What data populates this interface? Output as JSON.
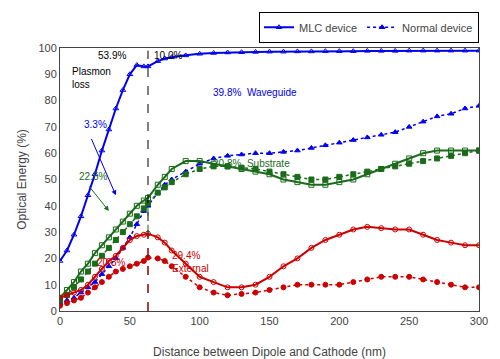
{
  "chart_data": {
    "type": "line",
    "xlabel": "Distance between Dipole and Cathode (nm)",
    "ylabel": "Optical Energy (%)",
    "xlim": [
      0,
      300
    ],
    "ylim": [
      0,
      100
    ],
    "xticks": [
      0,
      50,
      100,
      150,
      200,
      250,
      300
    ],
    "yticks": [
      0,
      10,
      20,
      30,
      40,
      50,
      60,
      70,
      80,
      90,
      100
    ],
    "grid": false,
    "legend": "top",
    "x": [
      0,
      5,
      10,
      15,
      20,
      25,
      30,
      35,
      40,
      45,
      50,
      55,
      60,
      63,
      70,
      75,
      80,
      90,
      100,
      110,
      120,
      130,
      140,
      150,
      160,
      170,
      180,
      190,
      200,
      210,
      220,
      230,
      240,
      250,
      260,
      270,
      280,
      290,
      300
    ],
    "series": [
      {
        "name": "MLC device",
        "color": "#0000EE",
        "line_style": "solid",
        "marker": "triangle-up-open",
        "values": [
          19,
          23,
          29,
          36,
          44,
          52,
          61,
          69,
          77,
          84,
          90,
          93.5,
          93,
          93,
          95,
          96,
          96.5,
          97.2,
          97.8,
          98.1,
          98.3,
          98.4,
          98.5,
          98.6,
          98.6,
          98.7,
          98.7,
          98.8,
          98.8,
          98.8,
          98.9,
          98.9,
          98.9,
          99.0,
          99.0,
          99.0,
          99.0,
          99.0,
          99.0
        ]
      },
      {
        "name": "Normal device",
        "color": "#0000EE",
        "line_style": "dotted",
        "marker": "triangle-up",
        "values": [
          3,
          4,
          5,
          7,
          9,
          11,
          14,
          17,
          20,
          24,
          28,
          33,
          38,
          40,
          45,
          48,
          50,
          53,
          56,
          58,
          59,
          59.5,
          60,
          60,
          60.5,
          61,
          62,
          63,
          64,
          65,
          66,
          67,
          68,
          70,
          72,
          74,
          75,
          77,
          78
        ]
      },
      {
        "name": "MLC device",
        "color": "#1a6b1a",
        "line_style": "solid",
        "marker": "square-open",
        "values": [
          5,
          8,
          11,
          15,
          18,
          22,
          25,
          28,
          31,
          34,
          37,
          40,
          42,
          43,
          48,
          51,
          54,
          57,
          57,
          56,
          55,
          54,
          53,
          52,
          50,
          49,
          48,
          48,
          49,
          50,
          52,
          54,
          56,
          58,
          60,
          61,
          61,
          61,
          61
        ]
      },
      {
        "name": "Normal device",
        "color": "#1a6b1a",
        "line_style": "dotted",
        "marker": "square",
        "values": [
          4,
          6,
          9,
          12,
          15,
          18,
          21,
          24,
          27,
          30,
          33,
          36,
          39,
          41,
          45,
          47,
          49,
          52,
          54,
          55,
          55,
          54.5,
          54,
          53,
          52,
          51,
          50,
          50,
          51,
          52,
          53,
          54,
          55,
          56,
          57,
          58,
          59,
          60,
          61
        ]
      },
      {
        "name": "MLC device",
        "color": "#CC0000",
        "line_style": "solid",
        "marker": "circle-open",
        "values": [
          5,
          6,
          7,
          8,
          10,
          13,
          16,
          19,
          21,
          24,
          27,
          28.5,
          29,
          29.4,
          28,
          26,
          23,
          18,
          13,
          11,
          9,
          9,
          10,
          13,
          17,
          20,
          24,
          27,
          29,
          31,
          32,
          31.5,
          31,
          31,
          29,
          27,
          26,
          25,
          25
        ]
      },
      {
        "name": "Normal device",
        "color": "#CC0000",
        "line_style": "dotted",
        "marker": "circle",
        "values": [
          2,
          3,
          4,
          5,
          7,
          9,
          11,
          13,
          15,
          16,
          17,
          18,
          19,
          20.3,
          20,
          19,
          17,
          13,
          9,
          7,
          6,
          6.5,
          7,
          8,
          9,
          10,
          10,
          10,
          10,
          11,
          12,
          13,
          13,
          13,
          12,
          11,
          10,
          9,
          9
        ]
      }
    ],
    "vertical_lines": [
      {
        "x": 63,
        "y": [
          0,
          99
        ],
        "color": "#000000",
        "line_style": "dashed"
      },
      {
        "x": 63,
        "y": [
          0,
          29.4
        ],
        "color": "#CC0000",
        "line_style": "dashed"
      },
      {
        "x": 63,
        "y": [
          29.4,
          43
        ],
        "color": "#1a6b1a",
        "line_style": "dashed"
      }
    ],
    "annotations": [
      {
        "text": "53.9%",
        "x": 49,
        "y": 97,
        "color": "#000000",
        "align": "right"
      },
      {
        "text": "Plasmon",
        "x": 7,
        "y": 91,
        "color": "#000000",
        "align": "left"
      },
      {
        "text": "loss",
        "x": 7,
        "y": 86,
        "color": "#000000",
        "align": "left"
      },
      {
        "text": "10.0%",
        "x": 66,
        "y": 97,
        "color": "#000000",
        "align": "left"
      },
      {
        "text": "3.3%",
        "x": 16,
        "y": 71,
        "color": "#0000EE",
        "align": "left"
      },
      {
        "text": "39.8%  Waveguide",
        "x": 108,
        "y": 83,
        "color": "#0000EE",
        "align": "left"
      },
      {
        "text": "22.5%",
        "x": 12,
        "y": 51,
        "color": "#1a6b1a",
        "align": "left"
      },
      {
        "text": "20.8%  Substrate",
        "x": 108,
        "y": 56,
        "color": "#1a6b1a",
        "align": "left"
      },
      {
        "text": "20.3%",
        "x": 25,
        "y": 18.5,
        "color": "#CC0000",
        "align": "left"
      },
      {
        "text": "29.4%",
        "x": 79,
        "y": 21,
        "color": "#CC0000",
        "align": "left"
      },
      {
        "text": "External",
        "x": 79,
        "y": 16,
        "color": "#CC0000",
        "align": "left"
      }
    ],
    "arrows": [
      {
        "from": [
          22,
          66
        ],
        "to": [
          40,
          44
        ],
        "color": "#0000EE"
      },
      {
        "from": [
          20,
          48
        ],
        "to": [
          35,
          38
        ],
        "color": "#1a6b1a"
      }
    ]
  }
}
